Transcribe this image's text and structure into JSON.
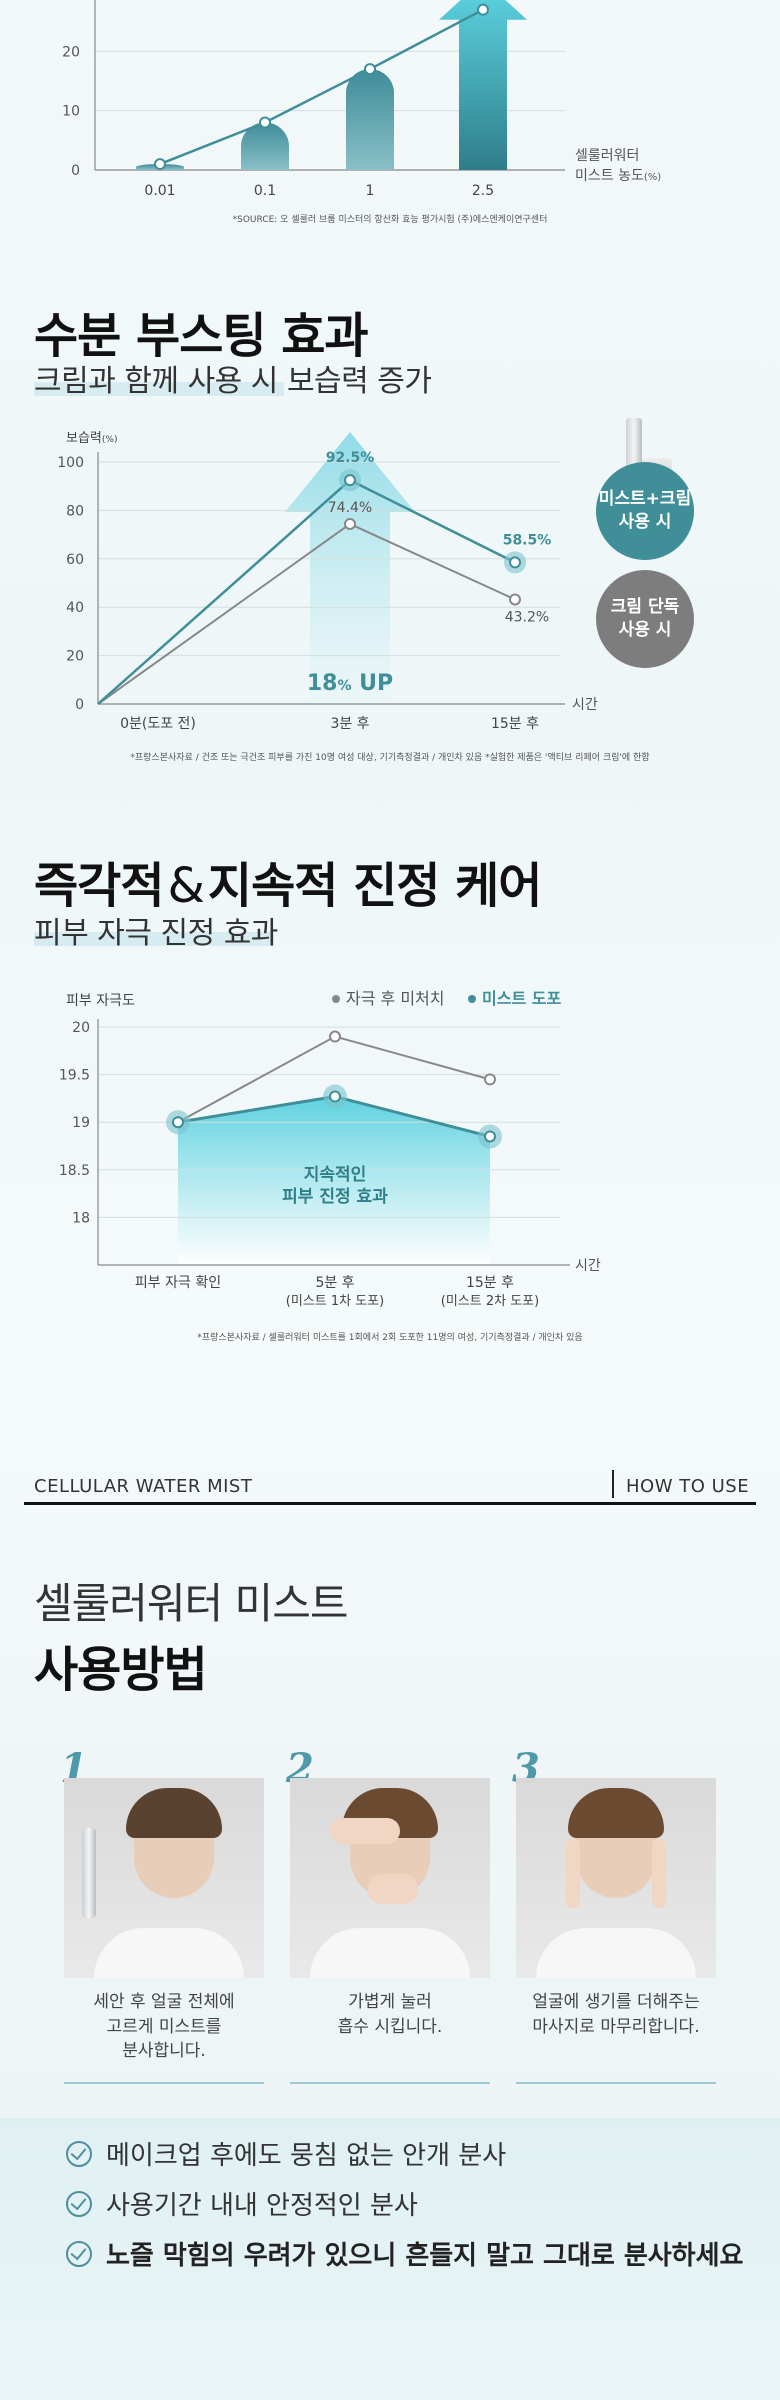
{
  "section1": {
    "chart_data": {
      "type": "bar",
      "categories": [
        "0.01",
        "0.1",
        "1",
        "2.5"
      ],
      "values": [
        1,
        8,
        17,
        27
      ],
      "yticks": [
        "0",
        "10",
        "20"
      ],
      "ylim": [
        0,
        32
      ],
      "xlabel_line1": "셀룰러워터",
      "xlabel_line2": "미스트 농도",
      "xlabel_unit": "(%)"
    },
    "source": "*SOURCE: 오 셀룰러 브룸 미스터의 항산화 효능 평가시험 (주)에스엔케이연구센터"
  },
  "section2": {
    "title": "수분 부스팅 효과",
    "subtitle": "크림과 함께 사용 시 보습력 증가",
    "chart_data": {
      "type": "line",
      "ylabel": "보습력",
      "ylabel_unit": "(%)",
      "xlabel": "시간",
      "categories": [
        "0분(도포 전)",
        "3분 후",
        "15분 후"
      ],
      "yticks": [
        "0",
        "20",
        "40",
        "60",
        "80",
        "100"
      ],
      "ylim": [
        0,
        100
      ],
      "series": [
        {
          "name": "미스트+크림 사용 시",
          "values": [
            0,
            92.5,
            58.5
          ],
          "labels": [
            "",
            "92.5%",
            "58.5%"
          ],
          "color": "#3f8e98"
        },
        {
          "name": "크림 단독 사용 시",
          "values": [
            0,
            74.4,
            43.2
          ],
          "labels": [
            "",
            "74.4%",
            "43.2%"
          ],
          "color": "#888888"
        }
      ],
      "annotation_num": "18",
      "annotation_pct": "%",
      "annotation_up": " UP"
    },
    "badge_mist_line1": "미스트+크림",
    "badge_mist_line2": "사용 시",
    "badge_cream_line1": "크림 단독",
    "badge_cream_line2": "사용 시",
    "source": "*프랑스본사자료 / 건조 또는 극건조 피부를 가진 10명 여성 대상, 기기측정결과 / 개인차 있음 *실험한 제품은 '액티브 리페어 크림'에 한함"
  },
  "section3": {
    "title_a": "즉각적",
    "title_amp": "&",
    "title_b": "지속적 진정 케어",
    "subtitle": "피부 자극 진정 효과",
    "chart_data": {
      "type": "line",
      "ylabel": "피부 자극도",
      "xlabel": "시간",
      "categories": [
        "피부 자극 확인",
        "5분 후",
        "15분 후"
      ],
      "categories_sub": [
        "",
        "(미스트 1차 도포)",
        "(미스트 2차 도포)"
      ],
      "yticks": [
        "20",
        "19.5",
        "19",
        "18.5",
        "18"
      ],
      "ylim": [
        17.5,
        20
      ],
      "series": [
        {
          "name": "자극 후 미처치",
          "values": [
            19,
            19.9,
            19.45
          ],
          "color": "#888888"
        },
        {
          "name": "미스트 도포",
          "values": [
            19,
            19.27,
            18.85
          ],
          "color": "#3f8e98"
        }
      ],
      "annotation_line1": "지속적인",
      "annotation_line2": "피부 진정 효과"
    },
    "source": "*프랑스본사자료 / 셀룰러워터 미스트를 1회에서 2회 도포한 11명의 여성, 기기측정결과 / 개인차 있음"
  },
  "howto": {
    "brand": "CELLULAR WATER MIST",
    "tab": "HOW TO USE",
    "title_line1": "셀룰러워터 미스트",
    "title_line2": "사용방법",
    "steps": [
      {
        "num": "1",
        "caption_l1": "세안 후 얼굴 전체에",
        "caption_l2": "고르게 미스트를",
        "caption_l3": "분사합니다."
      },
      {
        "num": "2",
        "caption_l1": "가볍게 눌러",
        "caption_l2": "흡수 시킵니다.",
        "caption_l3": ""
      },
      {
        "num": "3",
        "caption_l1": "얼굴에 생기를 더해주는",
        "caption_l2": "마사지로 마무리합니다.",
        "caption_l3": ""
      }
    ],
    "tips": [
      "메이크업 후에도 뭉침 없는 안개 분사",
      "사용기간 내내 안정적인 분사",
      "노즐 막힘의 우려가 있으니 흔들지 말고 그대로 분사하세요"
    ]
  }
}
